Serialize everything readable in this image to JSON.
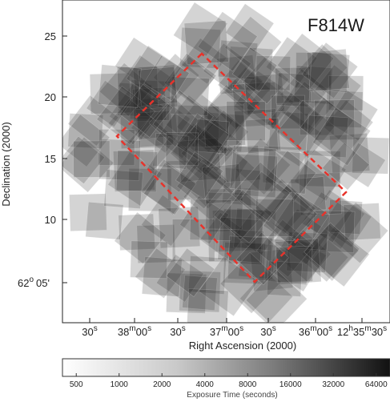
{
  "chart_data": {
    "type": "heatmap",
    "title": "F814W",
    "xlabel": "Right Ascension (2000)",
    "ylabel": "Declination (2000)",
    "x_ticks": [
      {
        "main": "30",
        "sup": "s",
        "tail": "",
        "tsup": ""
      },
      {
        "main": "38",
        "sup": "m",
        "tail": "00",
        "tsup": "s"
      },
      {
        "main": "30",
        "sup": "s",
        "tail": "",
        "tsup": ""
      },
      {
        "main": "37",
        "sup": "m",
        "tail": "00",
        "tsup": "s"
      },
      {
        "main": "30",
        "sup": "s",
        "tail": "",
        "tsup": ""
      },
      {
        "main": "36",
        "sup": "m",
        "tail": "00",
        "tsup": "s"
      },
      {
        "main": "12",
        "sup": "h",
        "tail": "35",
        "tsup": "m",
        "tail2": "30",
        "tsup2": "s"
      }
    ],
    "y_ticks": [
      "25",
      "20",
      "15",
      "10"
    ],
    "y_bottom_tick": {
      "main": "62",
      "sup": "o",
      "tail": "05'"
    },
    "colorbar": {
      "label": "Exposure Time (seconds)",
      "ticks": [
        "500",
        "1000",
        "2000",
        "4000",
        "8000",
        "16000",
        "32000",
        "64000"
      ],
      "scale": "log2",
      "range": [
        400,
        80000
      ]
    },
    "grid": false,
    "footprint_outline_color": "#e8332b"
  }
}
